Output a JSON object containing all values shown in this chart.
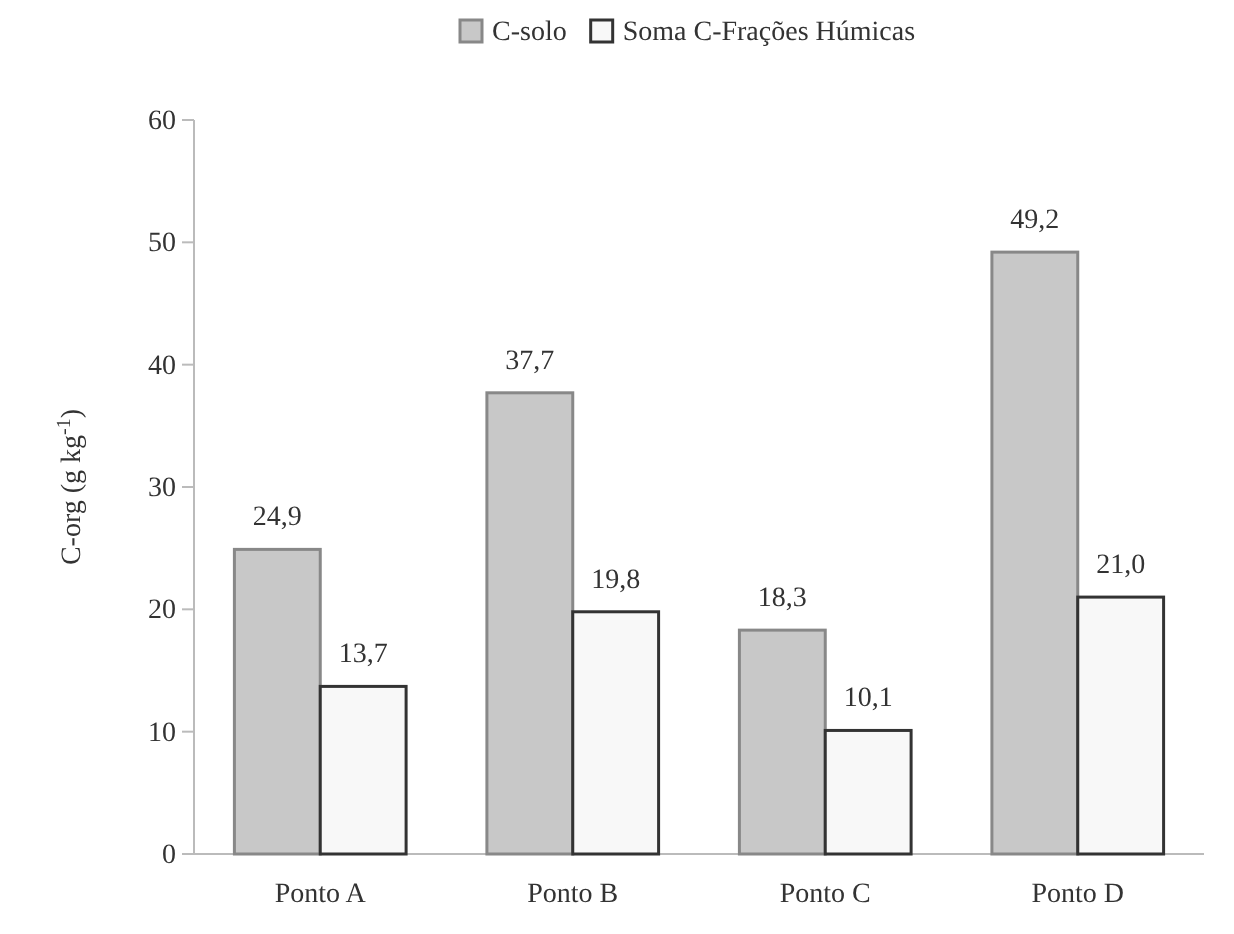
{
  "chart_data": {
    "type": "bar",
    "ylabel": "C-org (g kg$^{-1}$)",
    "categories": [
      "Ponto A",
      "Ponto B",
      "Ponto C",
      "Ponto D"
    ],
    "series": [
      {
        "name": "C-solo",
        "color": "#c8c8c8",
        "values": [
          24.9,
          37.7,
          18.3,
          49.2
        ],
        "value_labels": [
          "24,9",
          "37,7",
          "18,3",
          "49,2"
        ]
      },
      {
        "name": "Soma C-Frações Húmicas",
        "color": "#f8f8f8",
        "values": [
          13.7,
          19.8,
          10.1,
          21.0
        ],
        "value_labels": [
          "13,7",
          "19,8",
          "10,1",
          "21,0"
        ]
      }
    ],
    "ylim": [
      0,
      60
    ],
    "yticks": [
      0,
      10,
      20,
      30,
      40,
      50,
      60
    ],
    "legend": "top"
  }
}
